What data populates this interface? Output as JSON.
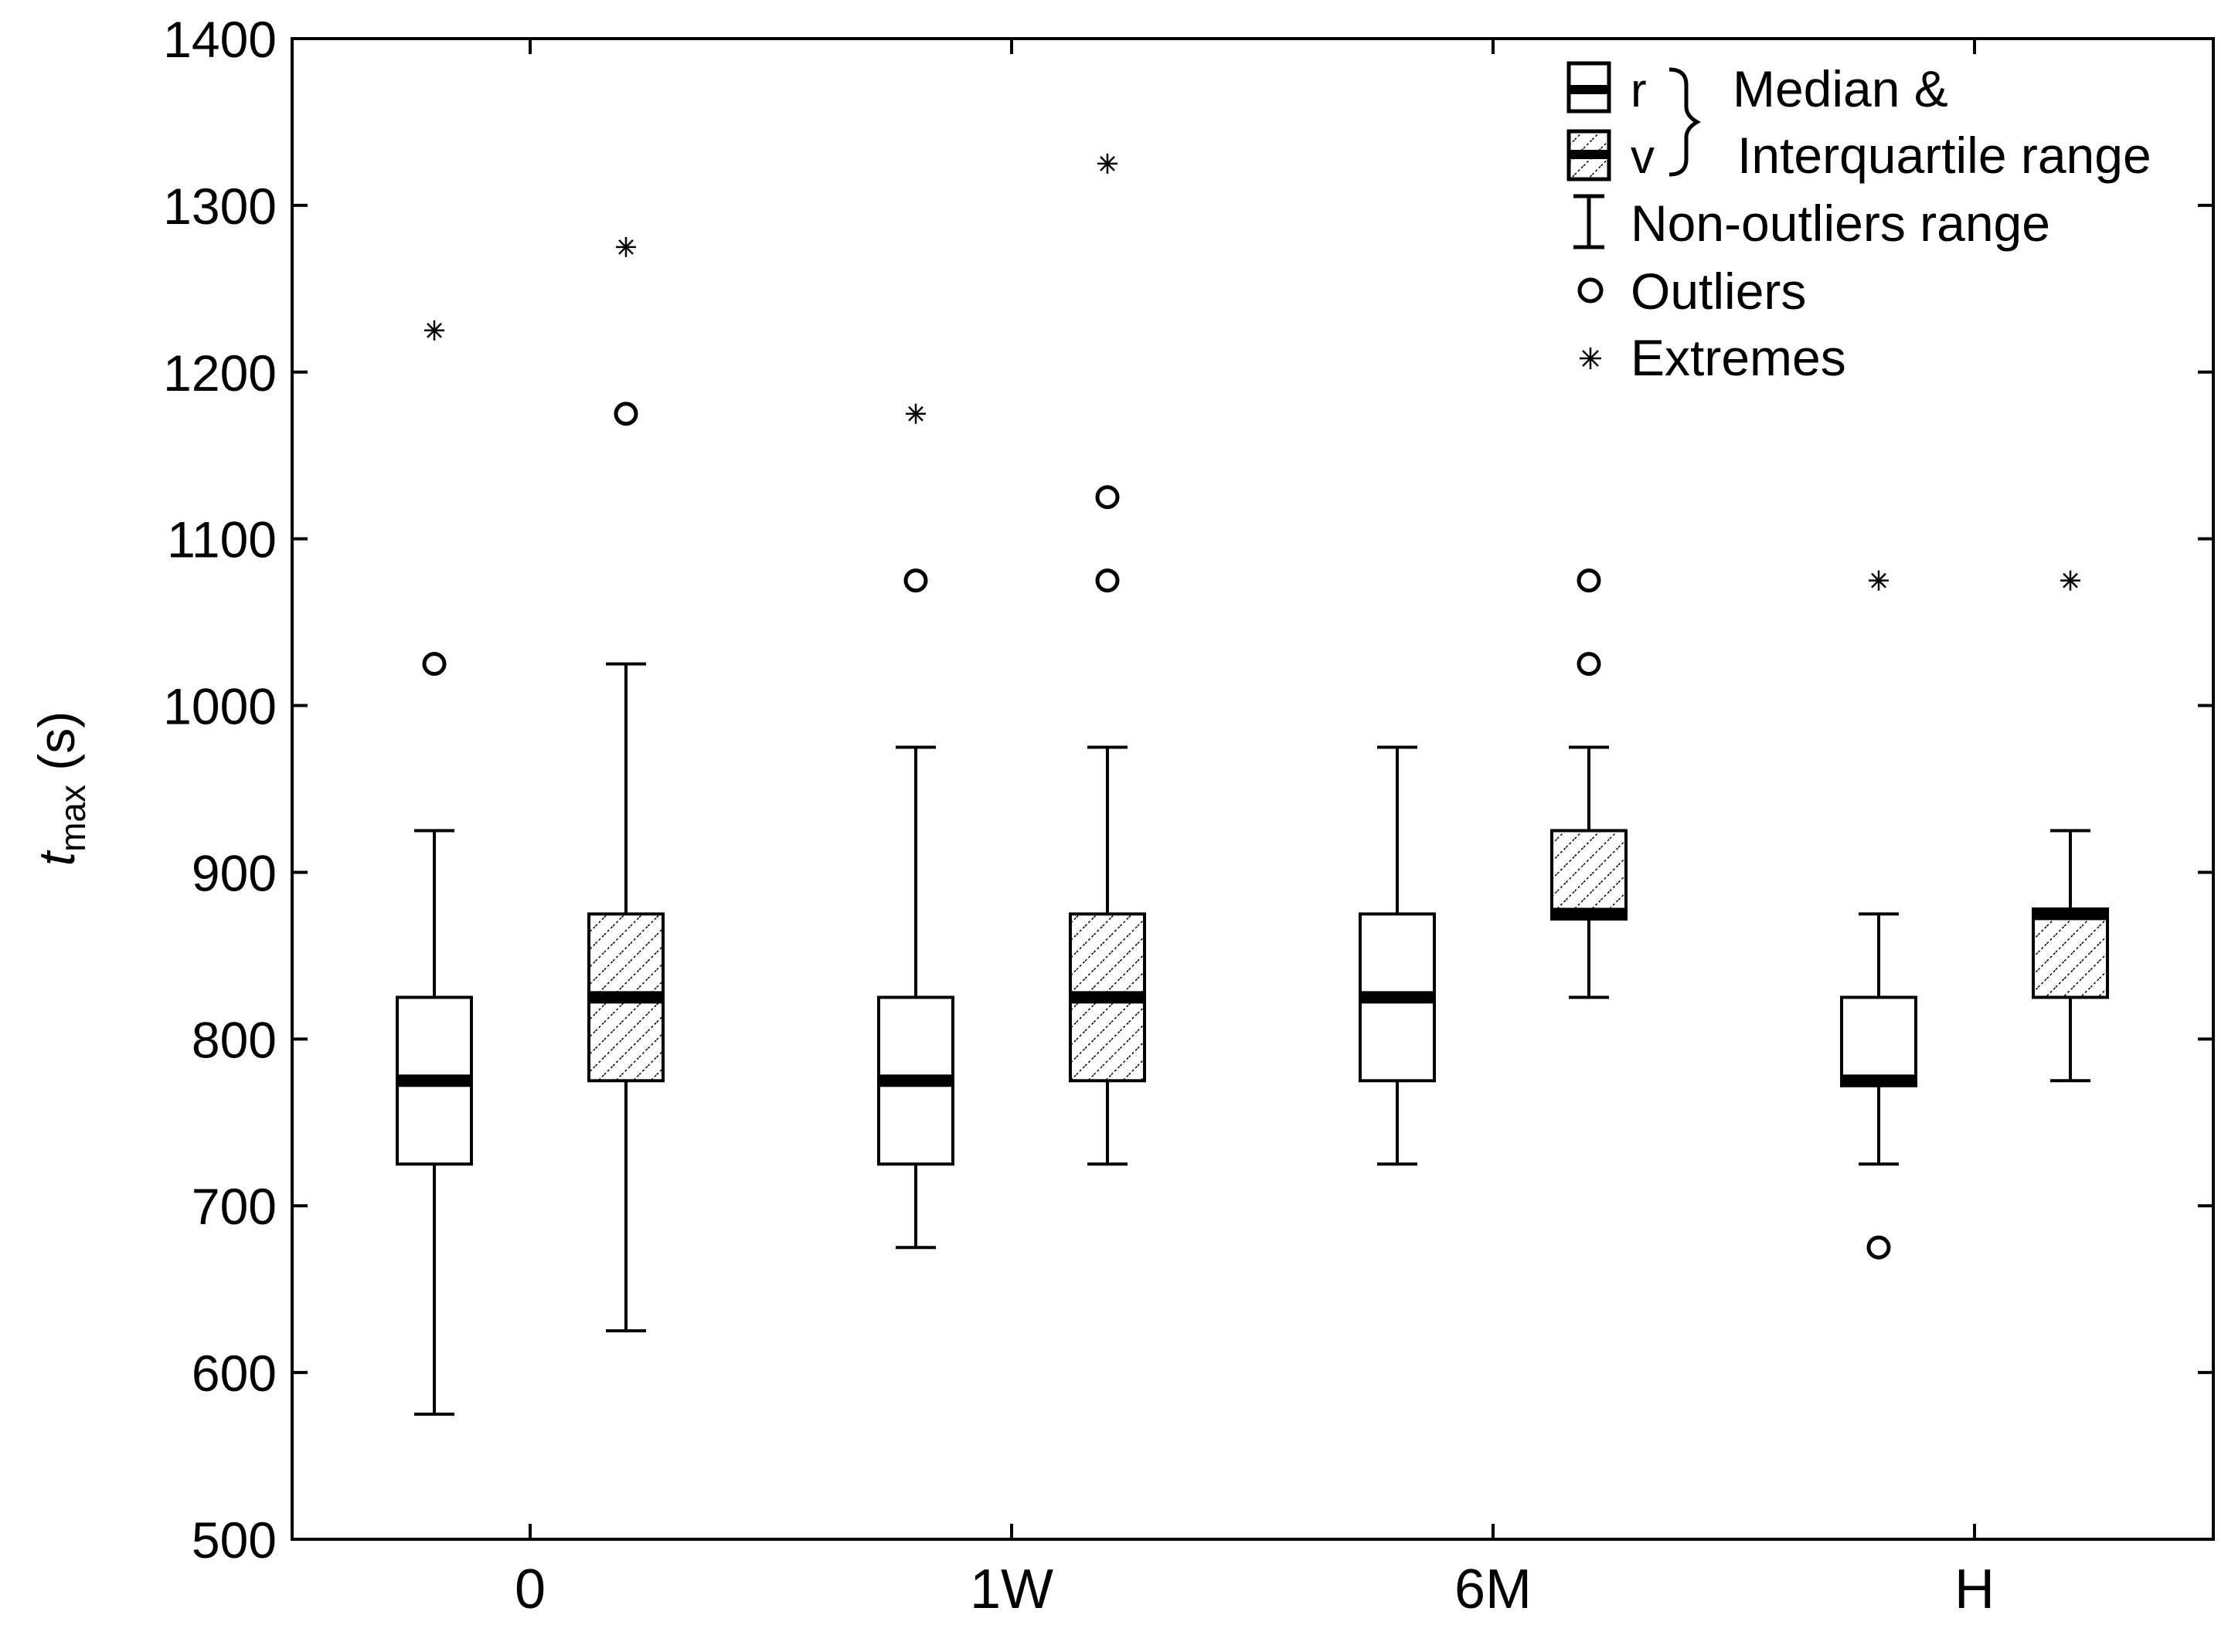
{
  "chart_data": {
    "type": "boxplot",
    "title": "",
    "xlabel": "",
    "ylabel": "t",
    "ylabel_sub": "max",
    "ylabel_unit": " (s)",
    "ylim": [
      500,
      1400
    ],
    "yticks": [
      500,
      600,
      700,
      800,
      900,
      1000,
      1100,
      1200,
      1300,
      1400
    ],
    "categories": [
      "0",
      "1W",
      "6M",
      "H"
    ],
    "series": [
      {
        "name": "r",
        "style": "plain",
        "boxes": [
          {
            "category": "0",
            "q1": 725,
            "median": 775,
            "q3": 825,
            "whisker_low": 575,
            "whisker_high": 925,
            "outliers": [
              1025
            ],
            "extremes": [
              1225
            ]
          },
          {
            "category": "1W",
            "q1": 725,
            "median": 775,
            "q3": 825,
            "whisker_low": 675,
            "whisker_high": 975,
            "outliers": [
              1075
            ],
            "extremes": [
              1175
            ]
          },
          {
            "category": "6M",
            "q1": 775,
            "median": 825,
            "q3": 875,
            "whisker_low": 725,
            "whisker_high": 975,
            "outliers": [],
            "extremes": []
          },
          {
            "category": "H",
            "q1": 772,
            "median": 775,
            "q3": 825,
            "whisker_low": 725,
            "whisker_high": 875,
            "outliers": [
              675
            ],
            "extremes": [
              1075
            ]
          }
        ]
      },
      {
        "name": "v",
        "style": "hatched",
        "boxes": [
          {
            "category": "0",
            "q1": 775,
            "median": 825,
            "q3": 875,
            "whisker_low": 625,
            "whisker_high": 1025,
            "outliers": [
              1175
            ],
            "extremes": [
              1275
            ]
          },
          {
            "category": "1W",
            "q1": 775,
            "median": 825,
            "q3": 875,
            "whisker_low": 725,
            "whisker_high": 975,
            "outliers": [
              1075,
              1125
            ],
            "extremes": [
              1325
            ]
          },
          {
            "category": "6M",
            "q1": 872,
            "median": 875,
            "q3": 925,
            "whisker_low": 825,
            "whisker_high": 975,
            "outliers": [
              1025,
              1075
            ],
            "extremes": []
          },
          {
            "category": "H",
            "q1": 825,
            "median": 875,
            "q3": 878,
            "whisker_low": 775,
            "whisker_high": 925,
            "outliers": [],
            "extremes": [
              1075
            ]
          }
        ]
      }
    ],
    "legend": {
      "position": "top-right",
      "box_r_label": "r",
      "box_v_label": "v",
      "brace_label_1": "Median &",
      "brace_label_2": "Interquartile range",
      "whisker_label": "Non-outliers range",
      "outlier_label": "Outliers",
      "extreme_label": "Extremes"
    }
  }
}
